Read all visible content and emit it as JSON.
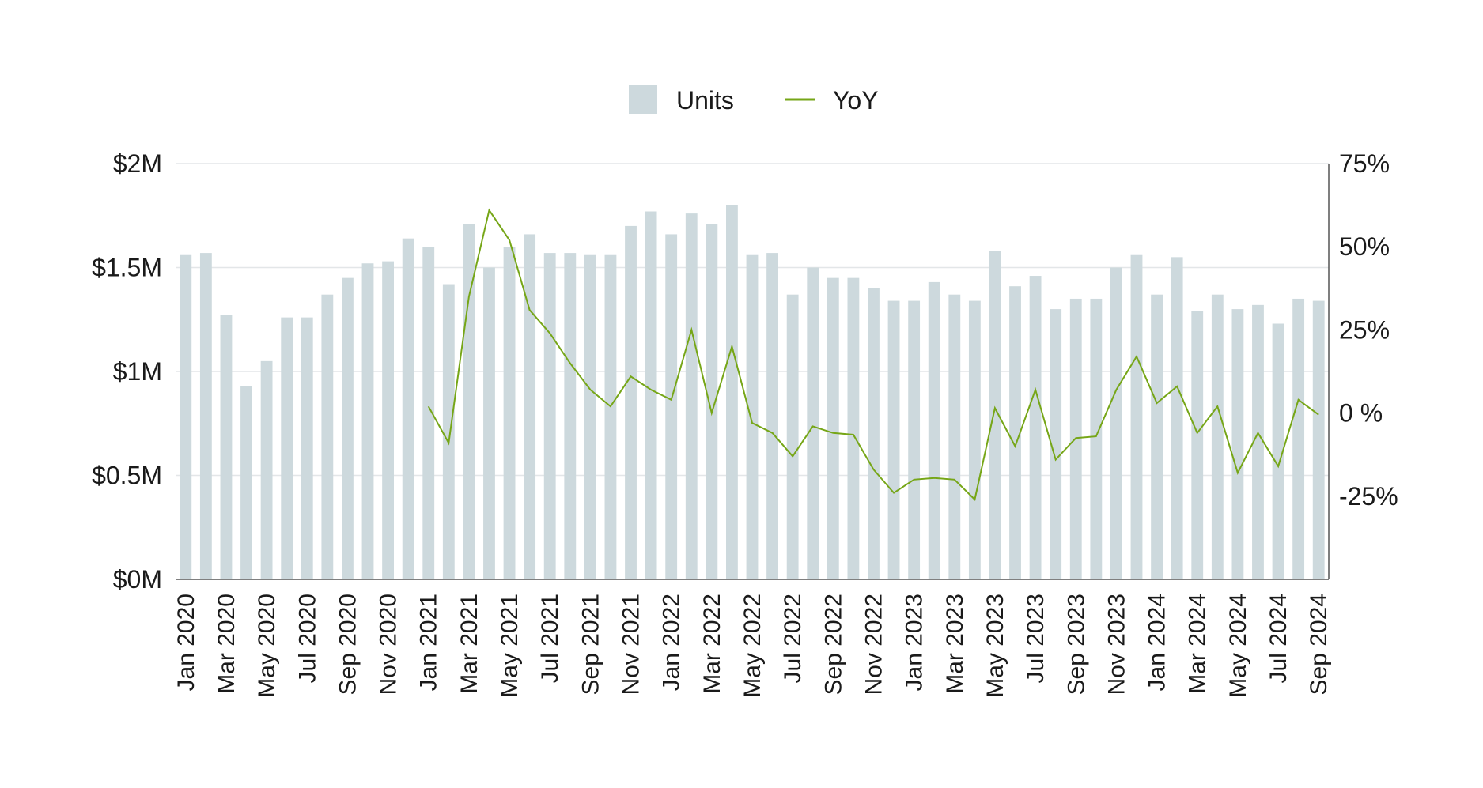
{
  "legend": {
    "units_label": "Units",
    "yoy_label": "YoY"
  },
  "colors": {
    "bar": "#cdd9dd",
    "line": "#76a617",
    "grid": "#e3e6e8",
    "axis": "#555555",
    "text": "#1a1a1a"
  },
  "chart_data": {
    "type": "bar",
    "title": "",
    "xlabel": "",
    "ylabel": "",
    "legend_position": "top-center",
    "grid": true,
    "categories": [
      "Jan 2020",
      "Feb 2020",
      "Mar 2020",
      "Apr 2020",
      "May 2020",
      "Jun 2020",
      "Jul 2020",
      "Aug 2020",
      "Sep 2020",
      "Oct 2020",
      "Nov 2020",
      "Dec 2020",
      "Jan 2021",
      "Feb 2021",
      "Mar 2021",
      "Apr 2021",
      "May 2021",
      "Jun 2021",
      "Jul 2021",
      "Aug 2021",
      "Sep 2021",
      "Oct 2021",
      "Nov 2021",
      "Dec 2021",
      "Jan 2022",
      "Feb 2022",
      "Mar 2022",
      "Apr 2022",
      "May 2022",
      "Jun 2022",
      "Jul 2022",
      "Aug 2022",
      "Sep 2022",
      "Oct 2022",
      "Nov 2022",
      "Dec 2022",
      "Jan 2023",
      "Feb 2023",
      "Mar 2023",
      "Apr 2023",
      "May 2023",
      "Jun 2023",
      "Jul 2023",
      "Aug 2023",
      "Sep 2023",
      "Oct 2023",
      "Nov 2023",
      "Dec 2023",
      "Jan 2024",
      "Feb 2024",
      "Mar 2024",
      "Apr 2024",
      "May 2024",
      "Jun 2024",
      "Jul 2024",
      "Aug 2024",
      "Sep 2024"
    ],
    "x_tick_labels": [
      "Jan 2020",
      "Mar 2020",
      "May 2020",
      "Jul 2020",
      "Sep 2020",
      "Nov 2020",
      "Jan 2021",
      "Mar 2021",
      "May 2021",
      "Jul 2021",
      "Sep 2021",
      "Nov 2021",
      "Jan 2022",
      "Mar 2022",
      "May 2022",
      "Jul 2022",
      "Sep 2022",
      "Nov 2022",
      "Jan 2023",
      "Mar 2023",
      "May 2023",
      "Jul 2023",
      "Sep 2023",
      "Nov 2023",
      "Jan 2024",
      "Mar 2024",
      "May 2024",
      "Jul 2024",
      "Sep 2024"
    ],
    "y_left": {
      "ticks": [
        0,
        0.5,
        1,
        1.5,
        2
      ],
      "tick_labels": [
        "$0M",
        "$0.5M",
        "$1M",
        "$1.5M",
        "$2M"
      ],
      "range": [
        0,
        2
      ]
    },
    "y_right": {
      "ticks": [
        -25,
        0,
        25,
        50,
        75
      ],
      "tick_labels": [
        "-25%",
        "0 %",
        "25%",
        "50%",
        "75%"
      ],
      "range": [
        -50,
        75
      ]
    },
    "series": [
      {
        "name": "Units",
        "type": "bar",
        "axis": "left",
        "values": [
          1.56,
          1.57,
          1.27,
          0.93,
          1.05,
          1.26,
          1.26,
          1.37,
          1.45,
          1.52,
          1.53,
          1.64,
          1.6,
          1.42,
          1.71,
          1.5,
          1.6,
          1.66,
          1.57,
          1.57,
          1.56,
          1.56,
          1.7,
          1.77,
          1.66,
          1.76,
          1.71,
          1.8,
          1.56,
          1.57,
          1.37,
          1.5,
          1.45,
          1.45,
          1.4,
          1.34,
          1.34,
          1.43,
          1.37,
          1.34,
          1.58,
          1.41,
          1.46,
          1.3,
          1.35,
          1.35,
          1.5,
          1.56,
          1.37,
          1.55,
          1.29,
          1.37,
          1.3,
          1.32,
          1.23,
          1.35,
          1.34
        ]
      },
      {
        "name": "YoY",
        "type": "line",
        "axis": "right",
        "values": [
          null,
          null,
          null,
          null,
          null,
          null,
          null,
          null,
          null,
          null,
          null,
          null,
          2,
          -9,
          35,
          61,
          52,
          31,
          24,
          15,
          7,
          2,
          11,
          7,
          4,
          25,
          0,
          20,
          -3,
          -6,
          -13,
          -4,
          -6,
          -6.5,
          -17,
          -24,
          -20,
          -19.5,
          -20,
          -26,
          1.5,
          -10,
          7,
          -14,
          -7.5,
          -7,
          7,
          17,
          3,
          8,
          -6,
          2,
          -18,
          -6,
          -16,
          4,
          -0.5
        ]
      }
    ]
  }
}
